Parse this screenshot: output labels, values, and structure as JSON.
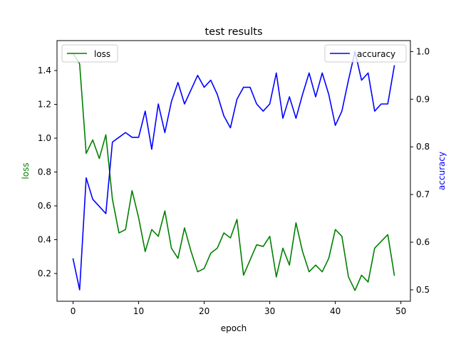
{
  "chart_data": {
    "type": "line",
    "title": "test results",
    "xlabel": "epoch",
    "ylabel_left": "loss",
    "ylabel_right": "accuracy",
    "xlim": [
      -2.45,
      51.45
    ],
    "ylim_left": [
      0.036,
      1.577
    ],
    "ylim_right": [
      0.476,
      1.023
    ],
    "x_ticks": [
      0,
      10,
      20,
      30,
      40,
      50
    ],
    "y_ticks_left": [
      0.2,
      0.4,
      0.6,
      0.8,
      1.0,
      1.2,
      1.4
    ],
    "y_ticks_right": [
      0.5,
      0.6,
      0.7,
      0.8,
      0.9,
      1.0
    ],
    "grid": false,
    "colors": {
      "loss": "#008000",
      "accuracy": "#0000ff"
    },
    "x": [
      0,
      1,
      2,
      3,
      4,
      5,
      6,
      7,
      8,
      9,
      10,
      11,
      12,
      13,
      14,
      15,
      16,
      17,
      18,
      19,
      20,
      21,
      22,
      23,
      24,
      25,
      26,
      27,
      28,
      29,
      30,
      31,
      32,
      33,
      34,
      35,
      36,
      37,
      38,
      39,
      40,
      41,
      42,
      43,
      44,
      45,
      46,
      47,
      48,
      49
    ],
    "series": [
      {
        "name": "loss",
        "axis": "left",
        "values": [
          1.5,
          1.44,
          0.91,
          0.99,
          0.88,
          1.02,
          0.64,
          0.44,
          0.46,
          0.69,
          0.53,
          0.33,
          0.46,
          0.42,
          0.57,
          0.35,
          0.29,
          0.47,
          0.33,
          0.21,
          0.23,
          0.32,
          0.35,
          0.44,
          0.41,
          0.52,
          0.19,
          0.28,
          0.37,
          0.36,
          0.42,
          0.18,
          0.35,
          0.25,
          0.5,
          0.33,
          0.21,
          0.25,
          0.21,
          0.29,
          0.46,
          0.42,
          0.18,
          0.1,
          0.19,
          0.15,
          0.35,
          0.39,
          0.43,
          0.19
        ]
      },
      {
        "name": "accuracy",
        "axis": "right",
        "values": [
          0.565,
          0.5,
          0.735,
          0.69,
          0.675,
          0.66,
          0.81,
          0.82,
          0.83,
          0.82,
          0.82,
          0.875,
          0.795,
          0.89,
          0.83,
          0.895,
          0.935,
          0.89,
          0.92,
          0.95,
          0.925,
          0.94,
          0.91,
          0.865,
          0.84,
          0.9,
          0.925,
          0.925,
          0.89,
          0.875,
          0.89,
          0.955,
          0.86,
          0.905,
          0.86,
          0.91,
          0.955,
          0.905,
          0.955,
          0.91,
          0.845,
          0.875,
          0.94,
          1.0,
          0.94,
          0.955,
          0.875,
          0.89,
          0.89,
          0.97
        ]
      }
    ],
    "legend": [
      {
        "label": "loss",
        "placement": "upper left"
      },
      {
        "label": "accuracy",
        "placement": "upper right"
      }
    ]
  }
}
